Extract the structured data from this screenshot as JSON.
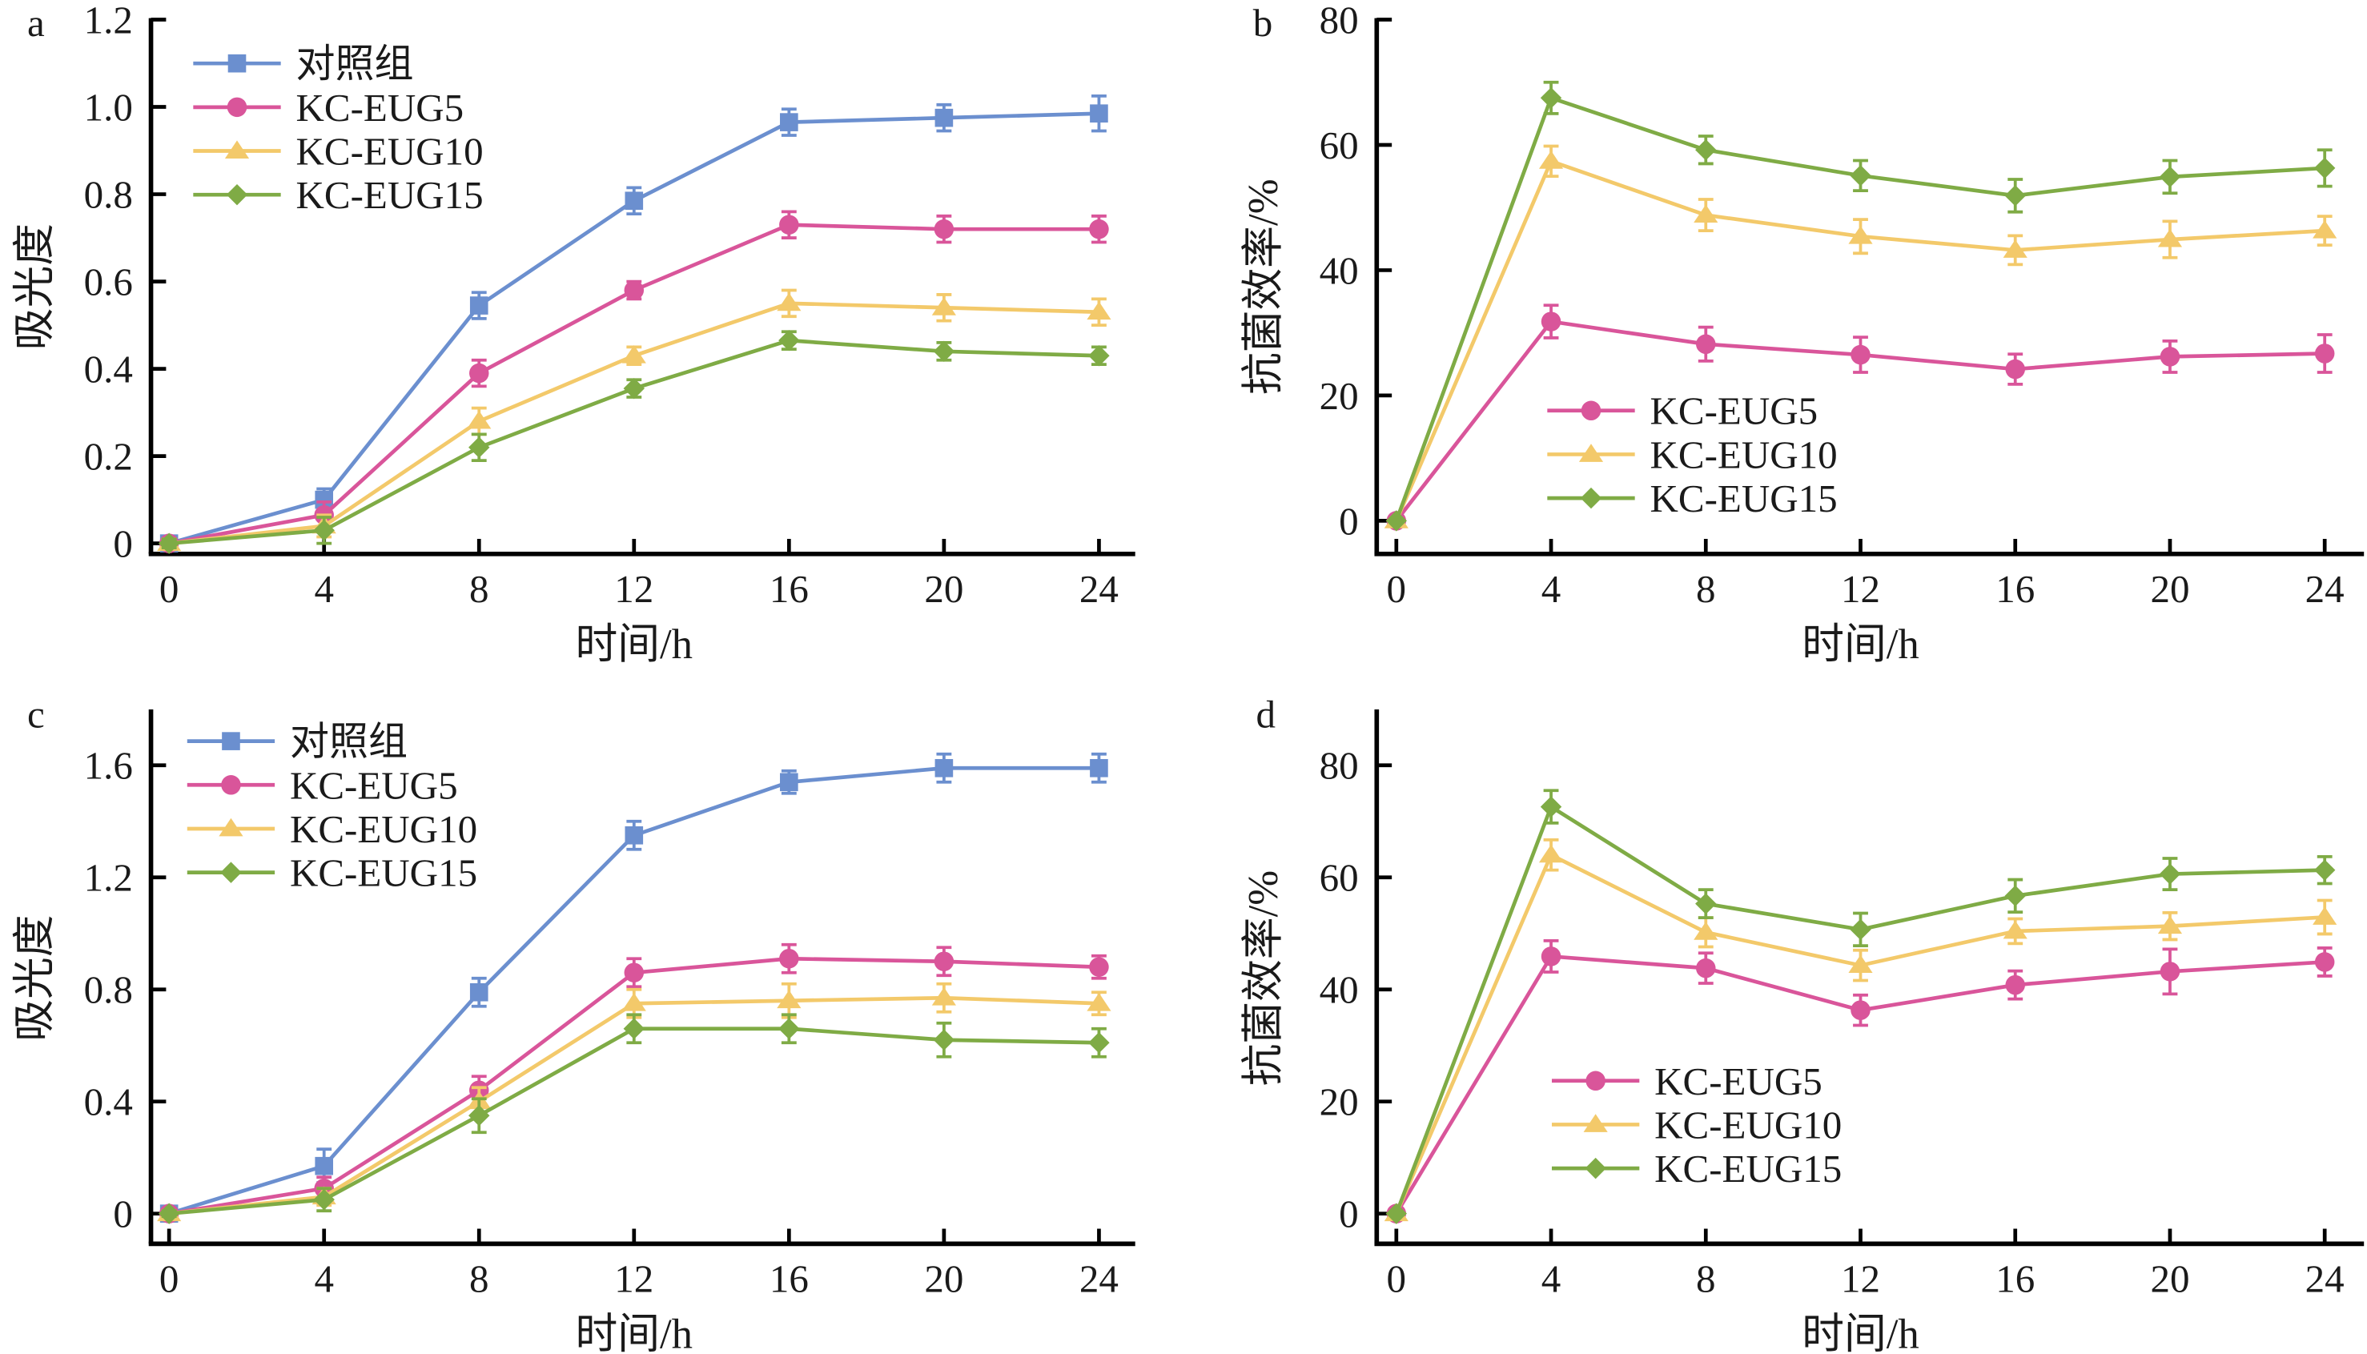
{
  "figure": {
    "panels": [
      "a",
      "b",
      "c",
      "d"
    ]
  },
  "colors": {
    "control": "#6b8fcf",
    "KC-EUG5": "#d9559a",
    "KC-EUG10": "#f3c96a",
    "KC-EUG15": "#7fab45"
  },
  "chart_data": [
    {
      "panel": "a",
      "type": "line",
      "title": "",
      "xlabel": "时间/h",
      "ylabel": "吸光度",
      "x": [
        0,
        4,
        8,
        12,
        16,
        20,
        24
      ],
      "xticks": [
        "0",
        "4",
        "8",
        "12",
        "16",
        "20",
        "24"
      ],
      "yticks": [
        "0",
        "0.2",
        "0.4",
        "0.6",
        "0.8",
        "1.0",
        "1.2"
      ],
      "ytick_values": [
        0,
        0.2,
        0.4,
        0.6,
        0.8,
        1.0,
        1.2
      ],
      "ylim": [
        0,
        1.2
      ],
      "xlim": [
        0,
        24
      ],
      "grid": false,
      "legend_position": "top-left",
      "series": [
        {
          "name": "对照组",
          "key": "control",
          "marker": "square",
          "values": [
            0,
            0.1,
            0.545,
            0.785,
            0.965,
            0.975,
            0.985
          ],
          "errors": [
            0.01,
            0.025,
            0.03,
            0.03,
            0.03,
            0.03,
            0.04
          ]
        },
        {
          "name": "KC-EUG5",
          "key": "KC-EUG5",
          "marker": "circle",
          "values": [
            0,
            0.065,
            0.39,
            0.58,
            0.73,
            0.72,
            0.72
          ],
          "errors": [
            0.01,
            0.03,
            0.03,
            0.02,
            0.03,
            0.03,
            0.03
          ]
        },
        {
          "name": "KC-EUG10",
          "key": "KC-EUG10",
          "marker": "triangle",
          "values": [
            0,
            0.04,
            0.28,
            0.43,
            0.55,
            0.54,
            0.53
          ],
          "errors": [
            0.01,
            0.025,
            0.03,
            0.02,
            0.03,
            0.03,
            0.03
          ]
        },
        {
          "name": "KC-EUG15",
          "key": "KC-EUG15",
          "marker": "diamond",
          "values": [
            0,
            0.03,
            0.22,
            0.355,
            0.465,
            0.44,
            0.43
          ],
          "errors": [
            0.01,
            0.03,
            0.03,
            0.02,
            0.02,
            0.02,
            0.02
          ]
        }
      ]
    },
    {
      "panel": "b",
      "type": "line",
      "title": "",
      "xlabel": "时间/h",
      "ylabel": "抗菌效率/%",
      "x": [
        0,
        4,
        8,
        12,
        16,
        20,
        24
      ],
      "xticks": [
        "0",
        "4",
        "8",
        "12",
        "16",
        "20",
        "24"
      ],
      "yticks": [
        "0",
        "20",
        "40",
        "60",
        "80"
      ],
      "ytick_values": [
        0,
        20,
        40,
        60,
        80
      ],
      "ylim": [
        0,
        80
      ],
      "xlim": [
        0,
        24
      ],
      "grid": false,
      "legend_position": "bottom-center",
      "series": [
        {
          "name": "KC-EUG5",
          "key": "KC-EUG5",
          "marker": "circle",
          "values": [
            0,
            31.8,
            28.2,
            26.5,
            24.2,
            26.2,
            26.7
          ],
          "errors": [
            0,
            2.6,
            2.7,
            2.8,
            2.4,
            2.5,
            3.0
          ]
        },
        {
          "name": "KC-EUG10",
          "key": "KC-EUG10",
          "marker": "triangle",
          "values": [
            0,
            57.4,
            48.8,
            45.4,
            43.2,
            44.9,
            46.3
          ],
          "errors": [
            0,
            2.4,
            2.5,
            2.7,
            2.3,
            2.9,
            2.3
          ]
        },
        {
          "name": "KC-EUG15",
          "key": "KC-EUG15",
          "marker": "diamond",
          "values": [
            0,
            67.5,
            59.2,
            55.1,
            51.9,
            54.9,
            56.3
          ],
          "errors": [
            0,
            2.5,
            2.2,
            2.4,
            2.6,
            2.6,
            2.9
          ]
        }
      ]
    },
    {
      "panel": "c",
      "type": "line",
      "title": "",
      "xlabel": "时间/h",
      "ylabel": "吸光度",
      "x": [
        0,
        4,
        8,
        12,
        16,
        20,
        24
      ],
      "xticks": [
        "0",
        "4",
        "8",
        "12",
        "16",
        "20",
        "24"
      ],
      "yticks": [
        "0",
        "0.4",
        "0.8",
        "1.2",
        "1.6"
      ],
      "ytick_values": [
        0,
        0.4,
        0.8,
        1.2,
        1.6
      ],
      "ylim": [
        0,
        1.8
      ],
      "xlim": [
        0,
        24
      ],
      "grid": false,
      "legend_position": "top-left",
      "series": [
        {
          "name": "对照组",
          "key": "control",
          "marker": "square",
          "values": [
            0,
            0.17,
            0.79,
            1.35,
            1.54,
            1.59,
            1.59
          ],
          "errors": [
            0.01,
            0.06,
            0.05,
            0.05,
            0.04,
            0.05,
            0.05
          ]
        },
        {
          "name": "KC-EUG5",
          "key": "KC-EUG5",
          "marker": "circle",
          "values": [
            0,
            0.09,
            0.44,
            0.86,
            0.91,
            0.9,
            0.88
          ],
          "errors": [
            0.01,
            0.04,
            0.05,
            0.05,
            0.05,
            0.05,
            0.04
          ]
        },
        {
          "name": "KC-EUG10",
          "key": "KC-EUG10",
          "marker": "triangle",
          "values": [
            0,
            0.06,
            0.4,
            0.75,
            0.76,
            0.77,
            0.75
          ],
          "errors": [
            0.01,
            0.03,
            0.05,
            0.05,
            0.06,
            0.05,
            0.04
          ]
        },
        {
          "name": "KC-EUG15",
          "key": "KC-EUG15",
          "marker": "diamond",
          "values": [
            0,
            0.05,
            0.35,
            0.66,
            0.66,
            0.62,
            0.61
          ],
          "errors": [
            0.01,
            0.04,
            0.06,
            0.05,
            0.05,
            0.06,
            0.05
          ]
        }
      ]
    },
    {
      "panel": "d",
      "type": "line",
      "title": "",
      "xlabel": "时间/h",
      "ylabel": "抗菌效率/%",
      "x": [
        0,
        4,
        8,
        12,
        16,
        20,
        24
      ],
      "xticks": [
        "0",
        "4",
        "8",
        "12",
        "16",
        "20",
        "24"
      ],
      "yticks": [
        "0",
        "20",
        "40",
        "60",
        "80"
      ],
      "ytick_values": [
        0,
        20,
        40,
        60,
        80
      ],
      "ylim": [
        0,
        90
      ],
      "xlim": [
        0,
        24
      ],
      "grid": false,
      "legend_position": "bottom-center",
      "series": [
        {
          "name": "KC-EUG5",
          "key": "KC-EUG5",
          "marker": "circle",
          "values": [
            0,
            45.9,
            43.8,
            36.3,
            40.8,
            43.2,
            44.9
          ],
          "errors": [
            0,
            2.8,
            2.7,
            2.7,
            2.5,
            4.0,
            2.5
          ]
        },
        {
          "name": "KC-EUG10",
          "key": "KC-EUG10",
          "marker": "triangle",
          "values": [
            0,
            64.0,
            50.2,
            44.3,
            50.4,
            51.3,
            52.9
          ],
          "errors": [
            0,
            2.7,
            2.6,
            2.7,
            2.2,
            2.4,
            3.0
          ]
        },
        {
          "name": "KC-EUG15",
          "key": "KC-EUG15",
          "marker": "diamond",
          "values": [
            0,
            72.6,
            55.3,
            50.7,
            56.7,
            60.6,
            61.3
          ],
          "errors": [
            0,
            2.9,
            2.5,
            2.9,
            2.9,
            2.8,
            2.4
          ]
        }
      ]
    }
  ]
}
